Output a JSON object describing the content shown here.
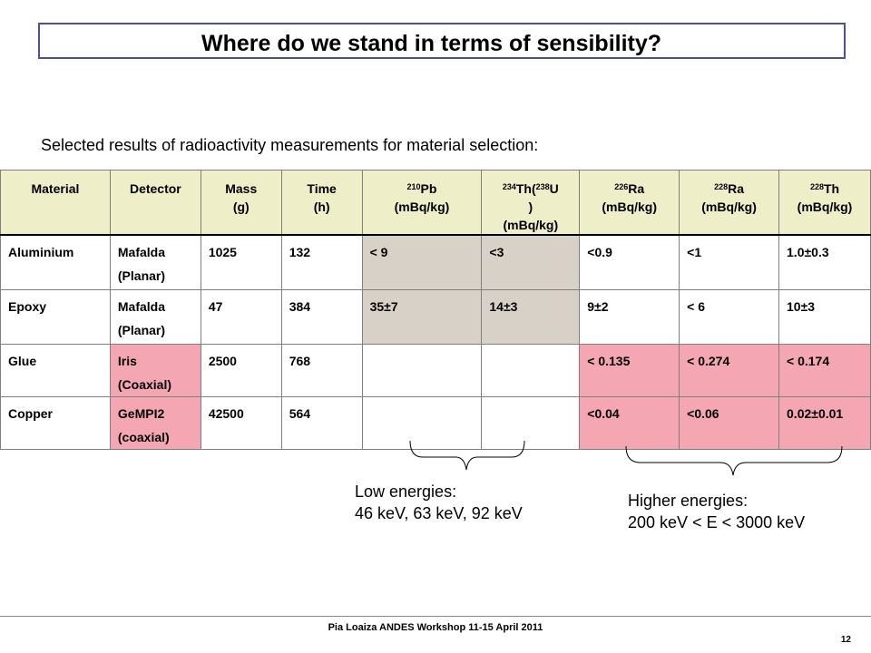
{
  "slide": {
    "title": "Where do we stand in terms of sensibility?",
    "subtitle": "Selected results of radioactivity measurements for material selection:",
    "footer": "Pia Loaiza ANDES Workshop 11-15 April 2011",
    "page_number": "12"
  },
  "table": {
    "headers": {
      "material": "Material",
      "detector": "Detector",
      "mass_l1": "Mass",
      "mass_l2": "(g)",
      "time_l1": "Time",
      "time_l2": "(h)",
      "pb_sup": "210",
      "pb_el": "Pb",
      "pb_unit": "(mBq/kg)",
      "th_sup1": "234",
      "th_el1": "Th(",
      "th_sup2": "238",
      "th_el2": "U",
      "th_paren": ")",
      "th_unit": "(mBq/kg)",
      "ra226_sup": "226",
      "ra226_el": "Ra",
      "ra226_unit": "(mBq/kg)",
      "ra228_sup": "228",
      "ra228_el": "Ra",
      "ra228_unit": "(mBq/kg)",
      "th228_sup": "228",
      "th228_el": "Th",
      "th228_unit": "(mBq/kg)"
    },
    "rows": [
      {
        "material": "Aluminium",
        "detector_l1": "Mafalda",
        "detector_l2": "(Planar)",
        "mass": "1025",
        "time": "132",
        "pb210": "< 9",
        "th234": "<3",
        "ra226": "<0.9",
        "ra228": "<1",
        "th228": "1.0±0.3"
      },
      {
        "material": "Epoxy",
        "detector_l1": "Mafalda",
        "detector_l2": "(Planar)",
        "mass": "47",
        "time": "384",
        "pb210": "35±7",
        "th234": "14±3",
        "ra226": "9±2",
        "ra228": "< 6",
        "th228": "10±3"
      },
      {
        "material": "Glue",
        "detector_l1": "Iris",
        "detector_l2": "(Coaxial)",
        "mass": "2500",
        "time": "768",
        "pb210": "",
        "th234": "",
        "ra226": "< 0.135",
        "ra228": "< 0.274",
        "th228": "< 0.174"
      },
      {
        "material": "Copper",
        "detector_l1": "GeMPI2",
        "detector_l2": "(coaxial)",
        "mass": "42500",
        "time": "564",
        "pb210": "",
        "th234": "",
        "ra226": "<0.04",
        "ra228": "<0.06",
        "th228": "0.02±0.01"
      }
    ]
  },
  "annotations": {
    "low_l1": "Low energies:",
    "low_l2": "46 keV, 63 keV, 92 keV",
    "high_l1": "Higher energies:",
    "high_l2": "200 keV < E < 3000 keV"
  },
  "colors": {
    "title_border": "#4b4fa3",
    "header_bg": "#eeeec8",
    "low_energy_cells": "#d7d1c7",
    "high_energy_cells": "#f4a7b3"
  }
}
